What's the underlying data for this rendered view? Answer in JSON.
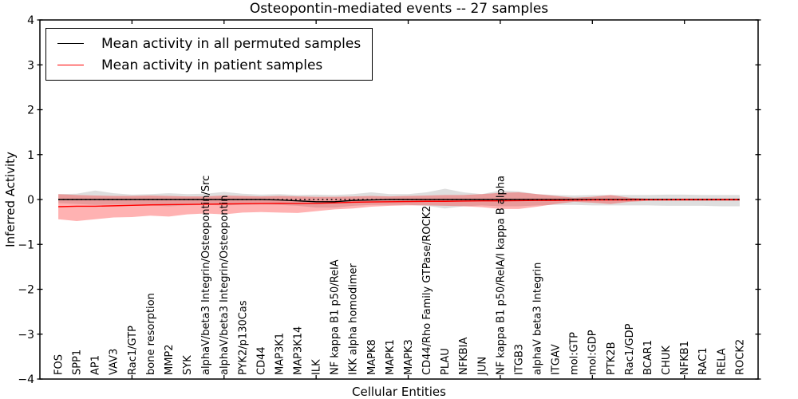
{
  "chart_data": {
    "type": "line",
    "title": "Osteopontin-mediated events -- 27 samples",
    "xlabel": "Cellular Entities",
    "ylabel": "Inferred Activity",
    "ylim": [
      -4,
      4
    ],
    "ytick_values": [
      4,
      3,
      2,
      1,
      0,
      -1,
      -2,
      -3,
      -4
    ],
    "ytick_labels": [
      "4",
      "3",
      "2",
      "1",
      "0",
      "−1",
      "−2",
      "−3",
      "−4"
    ],
    "x_axis_positions": 39,
    "x_major_tick_positions": [
      5,
      10,
      15,
      20,
      25,
      30,
      35
    ],
    "grid": false,
    "background": "#ffffff",
    "axis_color": "#000000",
    "zero_line": {
      "value": 0,
      "style": "dotted",
      "color": "#000000"
    },
    "legend": {
      "position": "upper left",
      "border_color": "#000000"
    },
    "categories": [
      "FOS",
      "SPP1",
      "AP1",
      "VAV3",
      "Rac1/GTP",
      "bone resorption",
      "MMP2",
      "SYK",
      "alphaV/beta3 Integrin/Osteopontin/Src",
      "alphaV/beta3 Integrin/Osteopontin",
      "PYK2/p130Cas",
      "CD44",
      "MAP3K1",
      "MAP3K14",
      "ILK",
      "NF kappa B1 p50/RelA",
      "IKK alpha homodimer",
      "MAPK8",
      "MAPK1",
      "MAPK3",
      "CD44/Rho Family GTPase/ROCK2",
      "PLAU",
      "NFKBIA",
      "JUN",
      "NF kappa B1 p50/RelA/I kappa B alpha",
      "ITGB3",
      "alphaV beta3 Integrin",
      "ITGAV",
      "mol:GTP",
      "mol:GDP",
      "PTK2B",
      "Rac1/GDP",
      "BCAR1",
      "CHUK",
      "NFKB1",
      "RAC1",
      "RELA",
      "ROCK2"
    ],
    "series": [
      {
        "name": "Mean activity in all permuted samples",
        "color": "#000000",
        "band_color": "#999999",
        "band_opacity": 0.32,
        "values": [
          0,
          0,
          0,
          0,
          0,
          0,
          0,
          0,
          0,
          0,
          0,
          0,
          -0.01,
          -0.03,
          -0.05,
          -0.05,
          -0.02,
          -0.01,
          0,
          0,
          0,
          0,
          0,
          0,
          0,
          0,
          0,
          0,
          0,
          0,
          0,
          0,
          0,
          0,
          0,
          0,
          0,
          0
        ],
        "band_upper": [
          0.12,
          0.13,
          0.2,
          0.14,
          0.11,
          0.12,
          0.14,
          0.12,
          0.13,
          0.17,
          0.13,
          0.11,
          0.12,
          0.1,
          0.11,
          0.1,
          0.12,
          0.16,
          0.12,
          0.12,
          0.16,
          0.24,
          0.16,
          0.12,
          0.2,
          0.18,
          0.12,
          0.1,
          0.09,
          0.1,
          0.1,
          0.1,
          0.1,
          0.11,
          0.11,
          0.1,
          0.1,
          0.1
        ],
        "band_lower": [
          -0.08,
          -0.1,
          -0.12,
          -0.11,
          -0.11,
          -0.13,
          -0.15,
          -0.13,
          -0.12,
          -0.13,
          -0.12,
          -0.11,
          -0.12,
          -0.14,
          -0.18,
          -0.18,
          -0.14,
          -0.12,
          -0.12,
          -0.12,
          -0.14,
          -0.2,
          -0.15,
          -0.13,
          -0.15,
          -0.15,
          -0.13,
          -0.12,
          -0.12,
          -0.13,
          -0.13,
          -0.13,
          -0.13,
          -0.14,
          -0.14,
          -0.14,
          -0.15,
          -0.15
        ]
      },
      {
        "name": "Mean activity in patient samples",
        "color": "#ff0000",
        "band_color": "#ff0000",
        "band_opacity": 0.3,
        "values": [
          -0.16,
          -0.15,
          -0.15,
          -0.14,
          -0.13,
          -0.12,
          -0.115,
          -0.11,
          -0.105,
          -0.1,
          -0.095,
          -0.09,
          -0.085,
          -0.09,
          -0.085,
          -0.075,
          -0.06,
          -0.055,
          -0.05,
          -0.045,
          -0.04,
          -0.04,
          -0.035,
          -0.03,
          -0.03,
          -0.025,
          -0.02,
          -0.02,
          -0.015,
          -0.01,
          -0.01,
          -0.01,
          -0.005,
          -0.005,
          0,
          0,
          0,
          0
        ],
        "band_upper": [
          0.12,
          0.1,
          0.09,
          0.08,
          0.08,
          0.09,
          0.08,
          0.07,
          0.07,
          0.09,
          0.08,
          0.07,
          0.08,
          0.07,
          0.06,
          0.06,
          0.07,
          0.08,
          0.07,
          0.08,
          0.09,
          0.1,
          0.1,
          0.12,
          0.15,
          0.16,
          0.12,
          0.08,
          0.04,
          0.06,
          0.1,
          0.04,
          0.02,
          0.02,
          0.02,
          0.02,
          0.02,
          0.02
        ],
        "band_lower": [
          -0.44,
          -0.48,
          -0.44,
          -0.4,
          -0.39,
          -0.36,
          -0.38,
          -0.33,
          -0.31,
          -0.33,
          -0.29,
          -0.28,
          -0.29,
          -0.3,
          -0.26,
          -0.22,
          -0.2,
          -0.16,
          -0.14,
          -0.13,
          -0.13,
          -0.14,
          -0.15,
          -0.17,
          -0.21,
          -0.21,
          -0.16,
          -0.1,
          -0.05,
          -0.07,
          -0.1,
          -0.05,
          -0.03,
          -0.03,
          -0.03,
          -0.03,
          -0.03,
          -0.03
        ]
      }
    ]
  }
}
